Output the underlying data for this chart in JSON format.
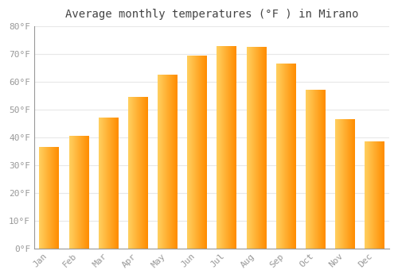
{
  "title": "Average monthly temperatures (°F ) in Mirano",
  "months": [
    "Jan",
    "Feb",
    "Mar",
    "Apr",
    "May",
    "Jun",
    "Jul",
    "Aug",
    "Sep",
    "Oct",
    "Nov",
    "Dec"
  ],
  "values": [
    36.5,
    40.5,
    47.0,
    54.5,
    62.5,
    69.5,
    73.0,
    72.5,
    66.5,
    57.0,
    46.5,
    38.5
  ],
  "bar_color": "#FFA500",
  "bar_color_left": "#FFB800",
  "bar_color_right": "#FF8C00",
  "background_color": "#FFFFFF",
  "plot_bg_color": "#FFFFFF",
  "grid_color": "#E8E8E8",
  "tick_color": "#999999",
  "title_color": "#444444",
  "ylim": [
    0,
    80
  ],
  "yticks": [
    0,
    10,
    20,
    30,
    40,
    50,
    60,
    70,
    80
  ],
  "title_fontsize": 10,
  "tick_fontsize": 8,
  "font_family": "monospace",
  "bar_width": 0.65
}
